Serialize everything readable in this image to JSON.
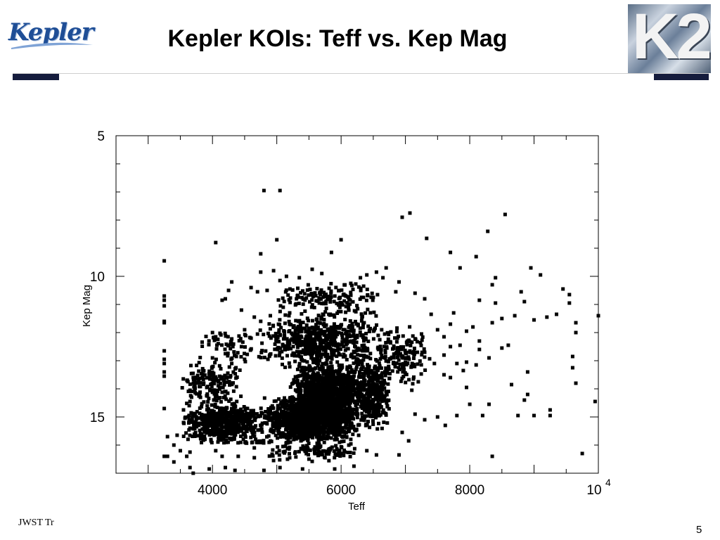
{
  "header": {
    "left_logo_text": "Kepler",
    "title": "Kepler KOIs: Teff vs. Kep Mag",
    "right_logo_text": "K2"
  },
  "footer": {
    "left_text": "JWST Tr",
    "page_number": "5"
  },
  "colors": {
    "banner": "#151c3d",
    "logo_blue": "#1f4e96",
    "points": "#000000"
  },
  "chart_data": {
    "type": "scatter",
    "title": "",
    "xlabel": "Teff",
    "ylabel": "Kep Mag",
    "xlim": [
      2500,
      10000
    ],
    "ylim": [
      17,
      5
    ],
    "y_inverted": true,
    "grid": false,
    "legend": "none",
    "x_ticks": [
      {
        "value": 4000,
        "label": "4000"
      },
      {
        "value": 6000,
        "label": "6000"
      },
      {
        "value": 8000,
        "label": "8000"
      },
      {
        "value": 10000,
        "label": "10",
        "exponent": "4"
      }
    ],
    "y_ticks": [
      {
        "value": 5,
        "label": "5"
      },
      {
        "value": 10,
        "label": "10"
      },
      {
        "value": 15,
        "label": "15"
      }
    ],
    "series": [
      {
        "points": [
          [
            4800,
            6.95
          ],
          [
            5050,
            6.95
          ],
          [
            6950,
            7.9
          ],
          [
            7070,
            7.75
          ],
          [
            8550,
            7.8
          ],
          [
            8280,
            8.4
          ],
          [
            4050,
            8.8
          ],
          [
            5000,
            8.7
          ],
          [
            7330,
            8.65
          ],
          [
            6000,
            8.7
          ],
          [
            5850,
            9.15
          ],
          [
            4750,
            9.2
          ],
          [
            7700,
            9.15
          ],
          [
            8100,
            9.3
          ],
          [
            7850,
            9.7
          ],
          [
            8950,
            9.7
          ],
          [
            9100,
            9.95
          ],
          [
            4300,
            10.2
          ],
          [
            4200,
            10.8
          ],
          [
            4150,
            10.85
          ],
          [
            4250,
            10.5
          ],
          [
            8400,
            10.05
          ],
          [
            8350,
            10.3
          ],
          [
            9450,
            10.45
          ],
          [
            9550,
            10.65
          ],
          [
            9550,
            10.95
          ],
          [
            8800,
            10.55
          ],
          [
            8850,
            10.9
          ],
          [
            8700,
            11.4
          ],
          [
            9000,
            11.55
          ],
          [
            9200,
            11.45
          ],
          [
            9350,
            11.35
          ],
          [
            9650,
            11.65
          ],
          [
            9650,
            12.0
          ],
          [
            10000,
            11.4
          ],
          [
            4000,
            12.0
          ],
          [
            4050,
            12.15
          ],
          [
            4500,
            11.9
          ],
          [
            3250,
            9.45
          ],
          [
            3250,
            10.7
          ],
          [
            3250,
            10.85
          ],
          [
            3250,
            11.05
          ],
          [
            3250,
            11.65
          ],
          [
            3250,
            11.6
          ],
          [
            3250,
            12.65
          ],
          [
            3250,
            12.95
          ],
          [
            3250,
            13.1
          ],
          [
            3250,
            13.4
          ],
          [
            3250,
            13.55
          ],
          [
            3250,
            14.7
          ],
          [
            3250,
            16.4
          ],
          [
            3300,
            16.4
          ],
          [
            3600,
            16.4
          ],
          [
            3650,
            16.8
          ],
          [
            3700,
            17.0
          ],
          [
            3950,
            16.85
          ],
          [
            4200,
            16.8
          ],
          [
            4350,
            16.9
          ],
          [
            4800,
            16.9
          ],
          [
            5050,
            16.8
          ],
          [
            5400,
            16.85
          ],
          [
            5900,
            16.85
          ],
          [
            6200,
            16.75
          ],
          [
            9650,
            13.8
          ],
          [
            9600,
            13.25
          ],
          [
            9600,
            12.85
          ],
          [
            8900,
            13.4
          ],
          [
            8900,
            14.2
          ],
          [
            8850,
            14.4
          ],
          [
            9000,
            14.95
          ],
          [
            9250,
            14.75
          ],
          [
            9250,
            14.95
          ],
          [
            8000,
            14.55
          ],
          [
            8650,
            13.85
          ],
          [
            8300,
            14.55
          ],
          [
            7620,
            15.3
          ],
          [
            7800,
            14.95
          ],
          [
            8200,
            14.95
          ],
          [
            8350,
            16.4
          ],
          [
            8750,
            14.95
          ],
          [
            9950,
            14.45
          ],
          [
            9750,
            16.3
          ],
          [
            6900,
            16.35
          ],
          [
            7050,
            15.85
          ],
          [
            7950,
            13.95
          ],
          [
            7300,
            15.1
          ],
          [
            7500,
            15.0
          ],
          [
            7900,
            13.35
          ],
          [
            7950,
            13.05
          ],
          [
            8100,
            13.15
          ],
          [
            8150,
            12.3
          ],
          [
            8150,
            12.6
          ],
          [
            8300,
            12.9
          ],
          [
            8500,
            12.55
          ],
          [
            8600,
            12.45
          ],
          [
            8350,
            11.65
          ],
          [
            8050,
            11.8
          ],
          [
            7950,
            11.95
          ],
          [
            7700,
            11.7
          ],
          [
            7750,
            11.3
          ],
          [
            8150,
            10.85
          ],
          [
            8400,
            10.95
          ],
          [
            8500,
            11.5
          ],
          [
            7400,
            11.35
          ],
          [
            7500,
            11.9
          ],
          [
            7600,
            12.15
          ],
          [
            7700,
            12.5
          ],
          [
            7600,
            12.8
          ],
          [
            7450,
            13.1
          ],
          [
            7800,
            13.1
          ],
          [
            7850,
            12.45
          ],
          [
            7700,
            13.6
          ],
          [
            7600,
            13.5
          ],
          [
            7300,
            12.7
          ],
          [
            7250,
            12.05
          ],
          [
            7000,
            13.05
          ],
          [
            7200,
            13.75
          ],
          [
            7100,
            14.05
          ],
          [
            7150,
            14.9
          ],
          [
            6950,
            15.55
          ],
          [
            7300,
            10.8
          ],
          [
            7150,
            10.6
          ],
          [
            6900,
            10.2
          ],
          [
            6850,
            10.55
          ],
          [
            6700,
            9.7
          ],
          [
            6650,
            10.05
          ],
          [
            6550,
            9.85
          ],
          [
            6400,
            9.95
          ],
          [
            6350,
            10.35
          ],
          [
            6500,
            10.75
          ],
          [
            6300,
            10.05
          ],
          [
            6150,
            10.25
          ],
          [
            5700,
            9.9
          ],
          [
            5550,
            9.75
          ],
          [
            5350,
            10.05
          ],
          [
            5150,
            10.0
          ],
          [
            5050,
            10.15
          ],
          [
            4950,
            9.8
          ],
          [
            4750,
            9.85
          ],
          [
            4600,
            10.4
          ],
          [
            4850,
            10.5
          ],
          [
            4700,
            10.55
          ],
          [
            4450,
            11.2
          ],
          [
            4650,
            11.45
          ],
          [
            4300,
            12.4
          ],
          [
            4450,
            12.5
          ],
          [
            4600,
            12.2
          ],
          [
            4750,
            11.6
          ],
          [
            4900,
            11.4
          ],
          [
            5100,
            11.1
          ],
          [
            5200,
            11.3
          ],
          [
            4200,
            12.75
          ],
          [
            4000,
            12.9
          ],
          [
            3850,
            13.35
          ],
          [
            4300,
            13.1
          ],
          [
            4500,
            12.95
          ],
          [
            3950,
            13.6
          ],
          [
            3700,
            13.6
          ],
          [
            3650,
            14.05
          ],
          [
            3800,
            14.2
          ],
          [
            3650,
            14.45
          ],
          [
            3550,
            14.75
          ],
          [
            3550,
            15.2
          ],
          [
            3450,
            15.65
          ],
          [
            3400,
            16.0
          ],
          [
            3500,
            16.2
          ],
          [
            3300,
            15.7
          ],
          [
            3650,
            15.4
          ],
          [
            3750,
            15.0
          ],
          [
            3650,
            16.25
          ],
          [
            4050,
            16.2
          ],
          [
            4150,
            16.4
          ],
          [
            4400,
            16.4
          ],
          [
            4650,
            16.45
          ],
          [
            4950,
            16.55
          ],
          [
            5200,
            16.45
          ],
          [
            5500,
            16.5
          ],
          [
            5750,
            16.45
          ],
          [
            6000,
            16.3
          ],
          [
            6400,
            16.2
          ],
          [
            6550,
            16.35
          ],
          [
            3400,
            16.6
          ],
          [
            4650,
            16.1
          ]
        ],
        "clouds": [
          {
            "n": 1300,
            "x": [
              4800,
              6300
            ],
            "y": [
              14.2,
              15.9
            ]
          },
          {
            "n": 1000,
            "x": [
              5200,
              6400
            ],
            "y": [
              13.0,
              15.3
            ]
          },
          {
            "n": 600,
            "x": [
              3500,
              4900
            ],
            "y": [
              14.5,
              15.9
            ]
          },
          {
            "n": 350,
            "x": [
              6200,
              6800
            ],
            "y": [
              12.6,
              15.6
            ]
          },
          {
            "n": 600,
            "x": [
              4700,
              6700
            ],
            "y": [
              11.2,
              13.4
            ]
          },
          {
            "n": 160,
            "x": [
              3500,
              4500
            ],
            "y": [
              13.0,
              14.6
            ]
          },
          {
            "n": 150,
            "x": [
              6500,
              7400
            ],
            "y": [
              11.6,
              14.0
            ]
          },
          {
            "n": 140,
            "x": [
              4900,
              6700
            ],
            "y": [
              10.2,
              11.4
            ]
          },
          {
            "n": 110,
            "x": [
              4800,
              6400
            ],
            "y": [
              15.8,
              16.6
            ]
          },
          {
            "n": 55,
            "x": [
              3700,
              4800
            ],
            "y": [
              11.8,
              13.2
            ]
          },
          {
            "n": 30,
            "x": [
              3700,
              5500
            ],
            "y": [
              15.85,
              15.95
            ]
          }
        ]
      }
    ]
  }
}
